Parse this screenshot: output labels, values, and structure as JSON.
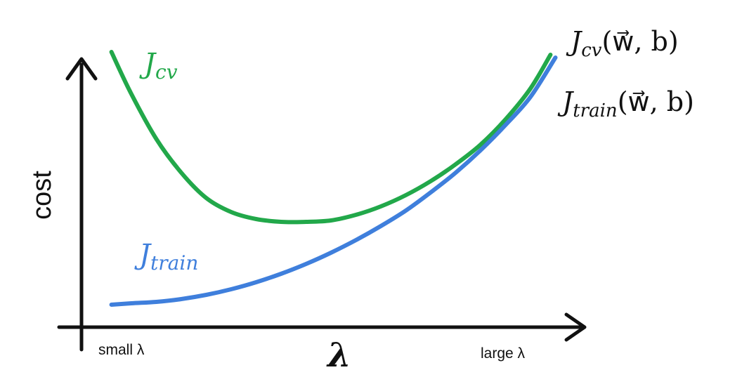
{
  "chart_data": {
    "type": "line",
    "xlabel": "λ",
    "ylabel": "cost",
    "x_tick_left": "small λ",
    "x_tick_right": "large λ",
    "x_range": [
      0,
      1
    ],
    "y_range": [
      0,
      1
    ],
    "grid": false,
    "series": [
      {
        "name": "J_cv",
        "color": "#22a84a",
        "curve_label": "J",
        "curve_label_sub": "cv",
        "end_label_main": "J",
        "end_label_sub": "cv",
        "end_label_args": "(w⃗, b)",
        "x": [
          0.06,
          0.1,
          0.15,
          0.2,
          0.25,
          0.3,
          0.35,
          0.4,
          0.45,
          0.5,
          0.55,
          0.6,
          0.65,
          0.7,
          0.75,
          0.8,
          0.85,
          0.9,
          0.94
        ],
        "y": [
          0.98,
          0.83,
          0.67,
          0.55,
          0.46,
          0.41,
          0.385,
          0.375,
          0.375,
          0.38,
          0.4,
          0.43,
          0.47,
          0.52,
          0.58,
          0.65,
          0.74,
          0.85,
          0.97
        ]
      },
      {
        "name": "J_train",
        "color": "#3f7fdc",
        "curve_label": "J",
        "curve_label_sub": "train",
        "end_label_main": "J",
        "end_label_sub": "train",
        "end_label_args": "(w⃗, b)",
        "x": [
          0.06,
          0.1,
          0.15,
          0.2,
          0.25,
          0.3,
          0.35,
          0.4,
          0.45,
          0.5,
          0.55,
          0.6,
          0.65,
          0.7,
          0.75,
          0.8,
          0.85,
          0.9,
          0.95
        ],
        "y": [
          0.08,
          0.085,
          0.09,
          0.1,
          0.115,
          0.135,
          0.16,
          0.19,
          0.225,
          0.265,
          0.31,
          0.36,
          0.415,
          0.48,
          0.55,
          0.63,
          0.72,
          0.82,
          0.96
        ]
      }
    ]
  }
}
